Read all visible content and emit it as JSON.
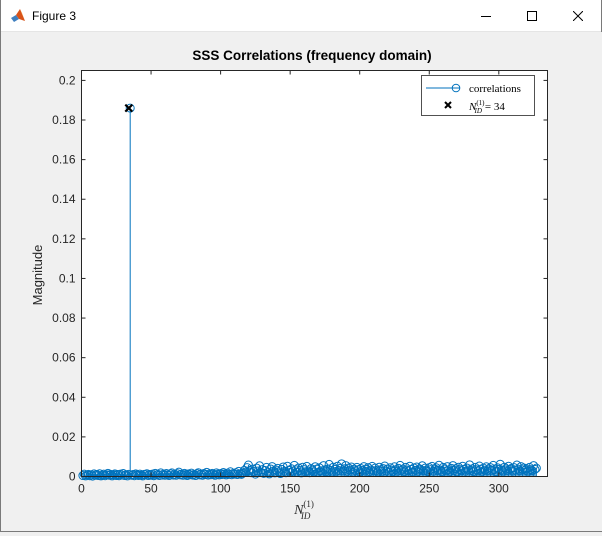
{
  "window": {
    "title": "Figure 3",
    "icons": {
      "app": "matlab-icon",
      "minimize": "minimize-icon",
      "maximize": "maximize-icon",
      "close": "close-icon"
    }
  },
  "chart_data": {
    "type": "stem",
    "title": "SSS Correlations (frequency domain)",
    "xlabel": "N",
    "xlabel_sup": "(1)",
    "xlabel_sub": "ID",
    "ylabel": "Magnitude",
    "xlim": [
      0,
      335
    ],
    "ylim": [
      0,
      0.205
    ],
    "xticks": [
      0,
      50,
      100,
      150,
      200,
      250,
      300
    ],
    "yticks": [
      0,
      0.02,
      0.04,
      0.06,
      0.08,
      0.1,
      0.12,
      0.14,
      0.16,
      0.18,
      0.2
    ],
    "ytick_labels": [
      "0",
      "0.02",
      "0.04",
      "0.06",
      "0.08",
      "0.1",
      "0.12",
      "0.14",
      "0.16",
      "0.18",
      "0.2"
    ],
    "grid": false,
    "legend_position": "top-right",
    "series_color": "#0072bd",
    "peak": {
      "x": 34,
      "y": 0.186
    },
    "legend": {
      "series_label": "correlations",
      "marker_label_base": "N",
      "marker_label_sup": "(1)",
      "marker_label_sub": "ID",
      "marker_label_value": "= 34"
    },
    "values": [
      0.0005,
      0.0012,
      0.0003,
      0.0008,
      0.0011,
      0.0004,
      0.0009,
      0.0002,
      0.0013,
      0.0006,
      0.001,
      0.0005,
      0.0014,
      0.0003,
      0.0007,
      0.0012,
      0.0004,
      0.0009,
      0.0016,
      0.0006,
      0.0011,
      0.0003,
      0.0008,
      0.0013,
      0.0005,
      0.001,
      0.0004,
      0.0012,
      0.0007,
      0.0015,
      0.0005,
      0.0009,
      0.0003,
      0.0011,
      0.186,
      0.0006,
      0.001,
      0.0004,
      0.0013,
      0.0008,
      0.0005,
      0.0012,
      0.0007,
      0.0003,
      0.0011,
      0.0009,
      0.0014,
      0.0005,
      0.001,
      0.0006,
      0.0012,
      0.0004,
      0.0016,
      0.0008,
      0.0011,
      0.0005,
      0.0018,
      0.0007,
      0.0012,
      0.0006,
      0.0015,
      0.0009,
      0.0005,
      0.0013,
      0.0018,
      0.0007,
      0.0011,
      0.0006,
      0.0014,
      0.0022,
      0.0008,
      0.0012,
      0.0006,
      0.0016,
      0.001,
      0.0005,
      0.0013,
      0.0009,
      0.0017,
      0.0007,
      0.0011,
      0.0005,
      0.0014,
      0.0019,
      0.0008,
      0.0012,
      0.0006,
      0.0015,
      0.001,
      0.0021,
      0.0007,
      0.0013,
      0.0009,
      0.0016,
      0.0011,
      0.0006,
      0.0018,
      0.0012,
      0.0008,
      0.0015,
      0.001,
      0.002,
      0.0013,
      0.0008,
      0.0017,
      0.0011,
      0.0024,
      0.0009,
      0.0015,
      0.0012,
      0.0019,
      0.001,
      0.0026,
      0.0014,
      0.0011,
      0.0018,
      0.0031,
      0.0022,
      0.0045,
      0.0058,
      0.003,
      0.0019,
      0.0037,
      0.0025,
      0.0012,
      0.0042,
      0.0028,
      0.0054,
      0.002,
      0.0035,
      0.0016,
      0.003,
      0.0046,
      0.0022,
      0.0013,
      0.0038,
      0.005,
      0.0027,
      0.0018,
      0.0033,
      0.0041,
      0.0024,
      0.0015,
      0.0036,
      0.0048,
      0.0026,
      0.0019,
      0.0052,
      0.0031,
      0.0021,
      0.0039,
      0.0027,
      0.0056,
      0.0034,
      0.002,
      0.0043,
      0.003,
      0.0018,
      0.0047,
      0.0035,
      0.0024,
      0.0051,
      0.0028,
      0.0019,
      0.004,
      0.0032,
      0.0023,
      0.0049,
      0.0037,
      0.0021,
      0.0044,
      0.0029,
      0.002,
      0.0055,
      0.0034,
      0.0025,
      0.0038,
      0.0061,
      0.0031,
      0.0022,
      0.0047,
      0.0036,
      0.0026,
      0.0052,
      0.003,
      0.0041,
      0.0064,
      0.0028,
      0.0039,
      0.0055,
      0.0026,
      0.0043,
      0.0032,
      0.0048,
      0.0021,
      0.0037,
      0.0029,
      0.0046,
      0.0035,
      0.0023,
      0.004,
      0.0031,
      0.005,
      0.0027,
      0.0036,
      0.0045,
      0.0024,
      0.0033,
      0.0051,
      0.0029,
      0.0042,
      0.003,
      0.0022,
      0.0047,
      0.0034,
      0.0026,
      0.004,
      0.0053,
      0.0028,
      0.0038,
      0.0021,
      0.0044,
      0.0032,
      0.0025,
      0.0049,
      0.0035,
      0.0027,
      0.0041,
      0.0056,
      0.003,
      0.0037,
      0.0024,
      0.0046,
      0.0033,
      0.0028,
      0.0052,
      0.0036,
      0.0023,
      0.0043,
      0.0031,
      0.0048,
      0.0026,
      0.0039,
      0.0034,
      0.0054,
      0.0029,
      0.0042,
      0.0032,
      0.0025,
      0.0045,
      0.0035,
      0.0051,
      0.0027,
      0.0038,
      0.0044,
      0.003,
      0.0057,
      0.0033,
      0.0024,
      0.0046,
      0.0037,
      0.0028,
      0.005,
      0.0034,
      0.0026,
      0.0041,
      0.0055,
      0.0031,
      0.004,
      0.0023,
      0.0047,
      0.0035,
      0.0029,
      0.0052,
      0.0036,
      0.0027,
      0.0043,
      0.0033,
      0.0059,
      0.003,
      0.0039,
      0.0025,
      0.0046,
      0.0034,
      0.0028,
      0.0053,
      0.0037,
      0.0026,
      0.0042,
      0.0032,
      0.0049,
      0.0029,
      0.0038,
      0.0045,
      0.0031,
      0.0056,
      0.0035,
      0.0024,
      0.0044,
      0.0036,
      0.0062,
      0.0033,
      0.0027,
      0.0047,
      0.0038,
      0.003,
      0.0052,
      0.0035,
      0.0041,
      0.0028,
      0.0045,
      0.0032,
      0.0058,
      0.0037,
      0.0029,
      0.005,
      0.0034,
      0.0043,
      0.0031,
      0.0039,
      0.0027,
      0.0046,
      0.0035,
      0.003,
      0.0055,
      0.0036,
      0.0042
    ]
  }
}
